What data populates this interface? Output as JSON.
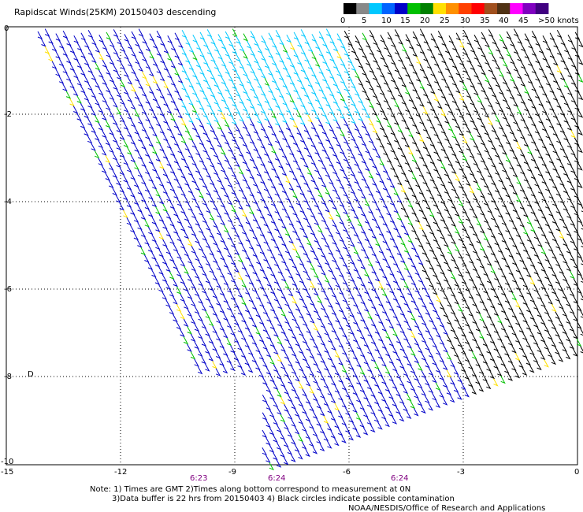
{
  "title": "Rapidscat Winds(25KM) 20150403 descending",
  "legend": {
    "labels": [
      "0",
      "5",
      "10",
      "15",
      "20",
      "25",
      "30",
      "35",
      "40",
      "45",
      ">50 knots"
    ],
    "colors": [
      "#000000",
      "#888888",
      "#00c8ff",
      "#0064ff",
      "#0000c8",
      "#00c000",
      "#008000",
      "#ffe000",
      "#ff9000",
      "#ff4000",
      "#ff0000",
      "#a0501e",
      "#503214",
      "#ff00ff",
      "#8000c0",
      "#400080"
    ]
  },
  "map": {
    "x_ticks": [
      "-15",
      "-12",
      "-9",
      "-6",
      "-3",
      "0"
    ],
    "y_ticks": [
      "0",
      "-2",
      "-4",
      "-6",
      "-8",
      "-10"
    ],
    "lon_range": [
      -15,
      0
    ],
    "lat_range": [
      -10,
      0
    ],
    "grid": "dotted",
    "times": [
      "6:23",
      "6:24",
      "6:24"
    ],
    "edge_marker": "D"
  },
  "notes": {
    "line1": "Note: 1) Times are GMT 2)Times along bottom correspond to measurement at 0N",
    "line2": "3)Data buffer is 22 hrs from 20150403 4) Black circles indicate possible contamination",
    "line3": "NOAA/NESDIS/Office of Research and Applications"
  }
}
